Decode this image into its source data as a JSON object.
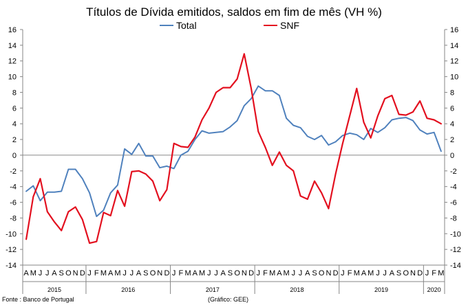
{
  "chart_data": {
    "type": "line",
    "title": "Títulos de Dívida emitidos, saldos em fim de mês  (VH %)",
    "ylim": [
      -14,
      16
    ],
    "yticks": [
      -14,
      -12,
      -10,
      -8,
      -6,
      -4,
      -2,
      0,
      2,
      4,
      6,
      8,
      10,
      12,
      14,
      16
    ],
    "month_labels": [
      "A",
      "M",
      "J",
      "J",
      "A",
      "S",
      "O",
      "N",
      "D",
      "J",
      "F",
      "M",
      "A",
      "M",
      "J",
      "J",
      "A",
      "S",
      "O",
      "N",
      "D",
      "J",
      "F",
      "M",
      "A",
      "M",
      "J",
      "J",
      "A",
      "S",
      "O",
      "N",
      "D",
      "J",
      "F",
      "M",
      "A",
      "M",
      "J",
      "J",
      "A",
      "S",
      "O",
      "N",
      "D",
      "J",
      "F",
      "M",
      "A",
      "M",
      "J",
      "J",
      "A",
      "S",
      "O",
      "N",
      "D",
      "J",
      "F",
      "M"
    ],
    "year_groups": [
      {
        "label": "2015",
        "start": 0,
        "count": 9
      },
      {
        "label": "2016",
        "start": 9,
        "count": 12
      },
      {
        "label": "2017",
        "start": 21,
        "count": 12
      },
      {
        "label": "2018",
        "start": 33,
        "count": 12
      },
      {
        "label": "2019",
        "start": 45,
        "count": 12
      },
      {
        "label": "2020",
        "start": 57,
        "count": 3
      }
    ],
    "series": [
      {
        "name": "Total",
        "color": "#4f81bd",
        "values": [
          -4.6,
          -3.9,
          -5.8,
          -4.7,
          -4.7,
          -4.6,
          -1.8,
          -1.8,
          -3.0,
          -4.8,
          -7.8,
          -7.0,
          -4.8,
          -3.8,
          0.8,
          0.1,
          1.5,
          -0.1,
          -0.1,
          -1.6,
          -1.4,
          -1.7,
          0.0,
          0.5,
          2.0,
          3.1,
          2.8,
          2.9,
          3.0,
          3.6,
          4.4,
          6.3,
          7.2,
          8.8,
          8.2,
          8.2,
          7.6,
          4.7,
          3.8,
          3.5,
          2.4,
          2.0,
          2.5,
          1.3,
          1.7,
          2.5,
          2.8,
          2.6,
          2.0,
          3.4,
          2.9,
          3.5,
          4.5,
          4.7,
          4.8,
          4.4,
          3.2,
          2.7,
          2.9,
          0.5
        ]
      },
      {
        "name": "SNF",
        "color": "#e3101f",
        "values": [
          -10.7,
          -5.3,
          -3.0,
          -7.2,
          -8.5,
          -9.6,
          -7.2,
          -6.6,
          -8.2,
          -11.2,
          -11.0,
          -7.3,
          -7.7,
          -4.5,
          -6.5,
          -2.1,
          -2.0,
          -2.4,
          -3.3,
          -5.8,
          -4.4,
          1.5,
          1.1,
          1.0,
          2.3,
          4.5,
          6.0,
          8.0,
          8.6,
          8.6,
          9.7,
          12.9,
          8.5,
          3.0,
          1.0,
          -1.3,
          0.4,
          -1.3,
          -2.0,
          -5.2,
          -5.6,
          -3.3,
          -4.8,
          -6.8,
          -2.4,
          1.5,
          5.0,
          8.5,
          4.2,
          2.2,
          5.0,
          7.2,
          7.6,
          5.2,
          5.1,
          5.5,
          6.9,
          4.7,
          4.5,
          4.0
        ]
      }
    ]
  },
  "legend": {
    "total_label": "Total",
    "snf_label": "SNF"
  },
  "footer": {
    "source": "Fonte : Banco de Portugal",
    "credit": "(Gráfico: GEE)"
  },
  "colors": {
    "axis": "#868686",
    "total": "#4f81bd",
    "snf": "#e3101f"
  }
}
